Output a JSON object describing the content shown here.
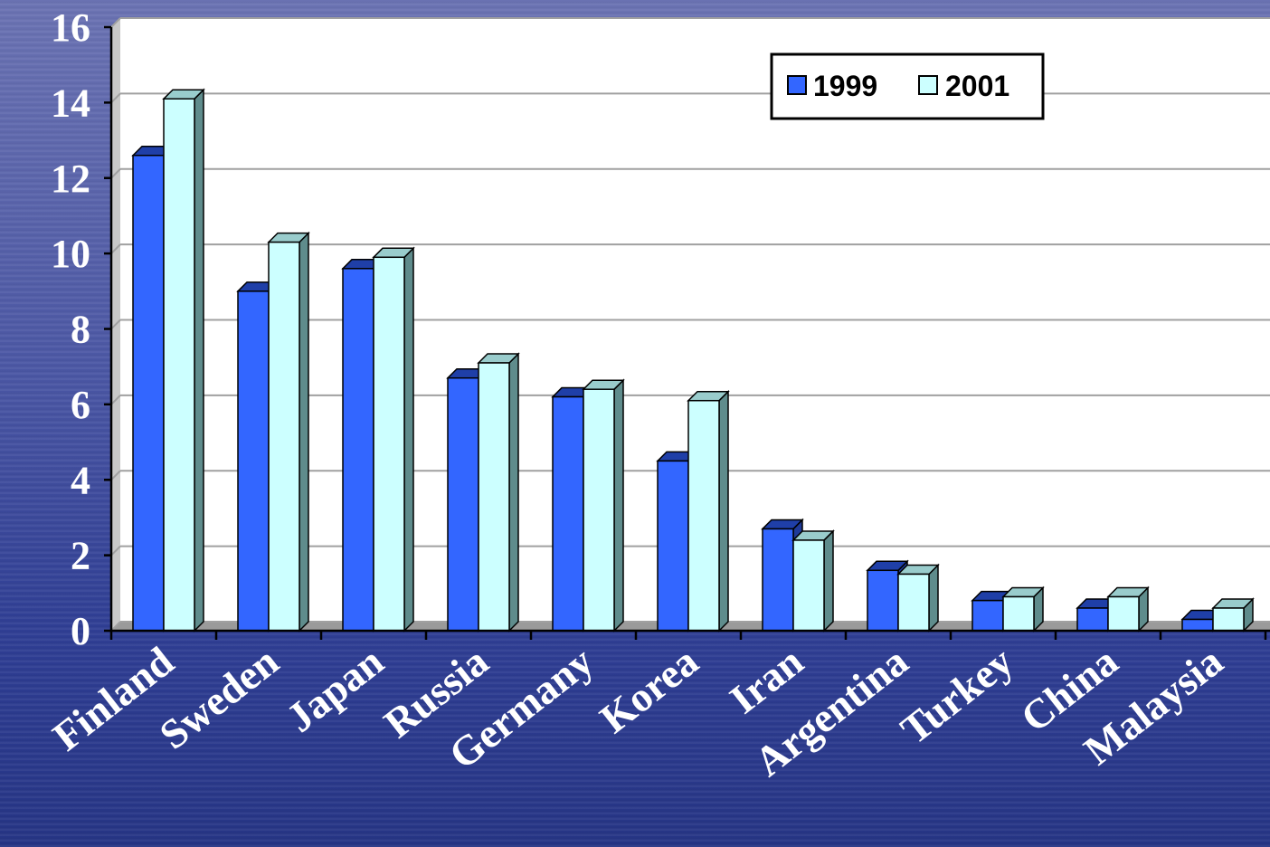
{
  "chart_data": {
    "type": "bar",
    "categories": [
      "Finland",
      "Sweden",
      "Japan",
      "Russia",
      "Germany",
      "Korea",
      "Iran",
      "Argentina",
      "Turkey",
      "China",
      "Malaysia"
    ],
    "series": [
      {
        "name": "1999",
        "values": [
          12.6,
          9.0,
          9.6,
          6.7,
          6.2,
          4.5,
          2.7,
          1.6,
          0.8,
          0.6,
          0.3
        ],
        "color": "#3366ff",
        "top_color": "#1f3fa8",
        "side_color": "#1f3a99"
      },
      {
        "name": "2001",
        "values": [
          14.1,
          10.3,
          9.9,
          7.1,
          6.4,
          6.1,
          2.4,
          1.5,
          0.9,
          0.9,
          0.6
        ],
        "color": "#ccffff",
        "top_color": "#99cccc",
        "side_color": "#5f8c8c"
      }
    ],
    "ylim": [
      0,
      16
    ],
    "yticks": [
      0,
      2,
      4,
      6,
      8,
      10,
      12,
      14,
      16
    ],
    "grid": true,
    "legend_position": "top-right",
    "title": "",
    "xlabel": "",
    "ylabel": ""
  }
}
